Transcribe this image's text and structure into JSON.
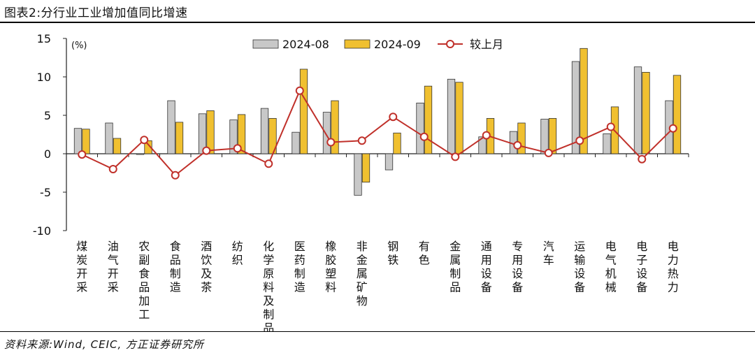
{
  "header": {
    "title": "图表2:分行业工业增加值同比增速"
  },
  "footer": {
    "source": "资料来源:Wind, CEIC, 方正证券研究所"
  },
  "chart_data": {
    "type": "bar",
    "unit": "(%)",
    "categories": [
      "煤炭开采",
      "油气开采",
      "农副食品加工",
      "食品制造",
      "酒饮及茶",
      "纺织",
      "化学原料及制品",
      "医药制造",
      "橡胶塑料",
      "非金属矿物",
      "钢铁",
      "有色",
      "金属制品",
      "通用设备",
      "专用设备",
      "汽车",
      "运输设备",
      "电气机械",
      "电子设备",
      "电力热力"
    ],
    "series": [
      {
        "name": "2024-08",
        "kind": "bar",
        "color": "#c8c8c8",
        "values": [
          3.3,
          4.0,
          -0.1,
          6.9,
          5.2,
          4.4,
          5.9,
          2.8,
          5.4,
          -5.4,
          -2.1,
          6.6,
          9.7,
          2.2,
          2.9,
          4.5,
          12.0,
          2.6,
          11.3,
          6.9
        ]
      },
      {
        "name": "2024-09",
        "kind": "bar",
        "color": "#f0c030",
        "values": [
          3.2,
          2.0,
          1.7,
          4.1,
          5.6,
          5.1,
          4.6,
          11.0,
          6.9,
          -3.7,
          2.7,
          8.8,
          9.3,
          4.6,
          4.0,
          4.6,
          13.7,
          6.1,
          10.6,
          10.2
        ]
      },
      {
        "name": "较上月",
        "kind": "line",
        "color": "#c0302a",
        "values": [
          -0.1,
          -2.0,
          1.8,
          -2.8,
          0.4,
          0.7,
          -1.3,
          8.2,
          1.5,
          1.7,
          4.8,
          2.2,
          -0.4,
          2.4,
          1.1,
          0.1,
          1.7,
          3.5,
          -0.7,
          3.3
        ]
      }
    ],
    "yticks": [
      15,
      10,
      5,
      0,
      -5,
      -10
    ],
    "ylim": [
      -10,
      15
    ],
    "legend_position": "top",
    "grid": false
  }
}
